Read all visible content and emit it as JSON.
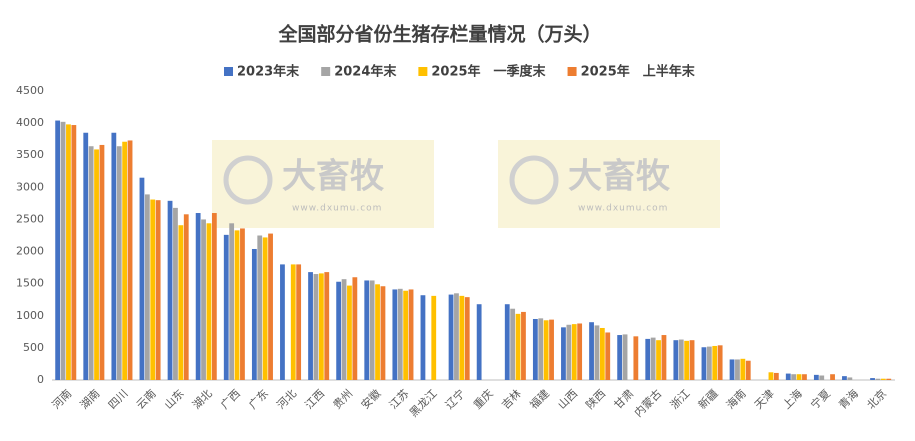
{
  "chart_data": {
    "type": "bar",
    "title": "全国部分省份生猪存栏量情况（万头）",
    "categories": [
      "河南",
      "湖南",
      "四川",
      "云南",
      "山东",
      "湖北",
      "广西",
      "广东",
      "河北",
      "江西",
      "贵州",
      "安徽",
      "江苏",
      "黑龙江",
      "辽宁",
      "重庆",
      "吉林",
      "福建",
      "山西",
      "陕西",
      "甘肃",
      "内蒙古",
      "浙江",
      "新疆",
      "海南",
      "天津",
      "上海",
      "宁夏",
      "青海",
      "北京"
    ],
    "series": [
      {
        "name": "2023年末",
        "color": "#4472c4",
        "values": [
          4040,
          3850,
          3850,
          3150,
          2790,
          2600,
          2260,
          2040,
          1800,
          1680,
          1530,
          1550,
          1410,
          1320,
          1330,
          1180,
          1180,
          950,
          820,
          900,
          700,
          640,
          620,
          510,
          320,
          null,
          100,
          80,
          60,
          30
        ]
      },
      {
        "name": "2024年末",
        "color": "#a5a5a5",
        "values": [
          4020,
          3640,
          3640,
          2890,
          2680,
          2500,
          2440,
          2250,
          null,
          1650,
          1570,
          1550,
          1420,
          null,
          1350,
          null,
          1110,
          960,
          860,
          850,
          710,
          660,
          630,
          520,
          320,
          null,
          90,
          70,
          40,
          20
        ]
      },
      {
        "name": "2025年　一季度末",
        "color": "#ffc000",
        "values": [
          3980,
          3590,
          3710,
          2810,
          2410,
          2440,
          2330,
          2220,
          1800,
          1660,
          1470,
          1490,
          1390,
          1310,
          1310,
          null,
          1030,
          930,
          870,
          810,
          null,
          620,
          610,
          530,
          330,
          120,
          90,
          null,
          null,
          20
        ]
      },
      {
        "name": "2025年　上半年末",
        "color": "#ed7d31",
        "values": [
          3970,
          3660,
          3730,
          2800,
          2580,
          2600,
          2360,
          2280,
          1800,
          1680,
          1600,
          1460,
          1410,
          null,
          1290,
          null,
          1060,
          940,
          880,
          740,
          680,
          700,
          620,
          540,
          300,
          110,
          90,
          90,
          null,
          20
        ]
      }
    ],
    "ylim": [
      0,
      4500
    ],
    "yticks": [
      0,
      500,
      1000,
      1500,
      2000,
      2500,
      3000,
      3500,
      4000,
      4500
    ],
    "grid": false,
    "watermark": [
      "大畜牧",
      "www.dxumu.com"
    ]
  }
}
